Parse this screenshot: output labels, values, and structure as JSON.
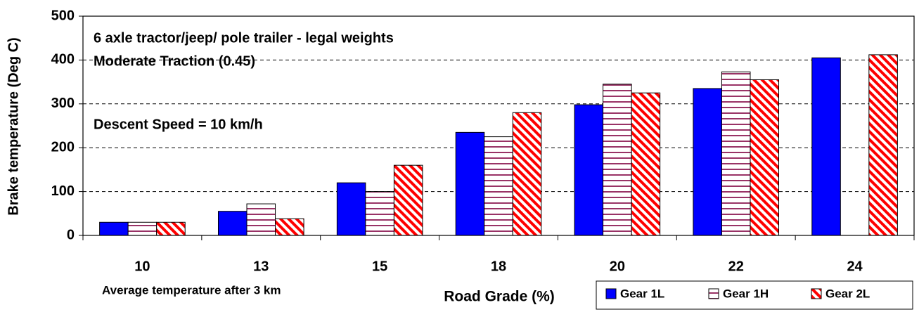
{
  "chart_data": {
    "type": "bar",
    "annotations": [
      "6 axle tractor/jeep/ pole trailer - legal weights",
      "Moderate Traction (0.45)",
      "Descent Speed = 10 km/h",
      "Average temperature after 3 km"
    ],
    "x_label": "Road Grade (%)",
    "y_label": "Brake temperature (Deg C)",
    "categories": [
      "10",
      "13",
      "15",
      "18",
      "20",
      "22",
      "24"
    ],
    "series": [
      {
        "name": "Gear 1L",
        "color": "#0000ff",
        "pattern": "solid",
        "values": [
          30,
          55,
          120,
          235,
          298,
          335,
          405
        ]
      },
      {
        "name": "Gear 1H",
        "color": "#993366",
        "pattern": "horizontal",
        "values": [
          30,
          72,
          100,
          225,
          345,
          373,
          null
        ]
      },
      {
        "name": "Gear 2L",
        "color": "#ff0000",
        "pattern": "diagonal",
        "values": [
          30,
          38,
          160,
          280,
          325,
          355,
          412
        ]
      }
    ],
    "ylim": [
      0,
      500
    ],
    "yticks": [
      0,
      100,
      200,
      300,
      400,
      500
    ],
    "grid": true,
    "legend": "bottom-right"
  }
}
